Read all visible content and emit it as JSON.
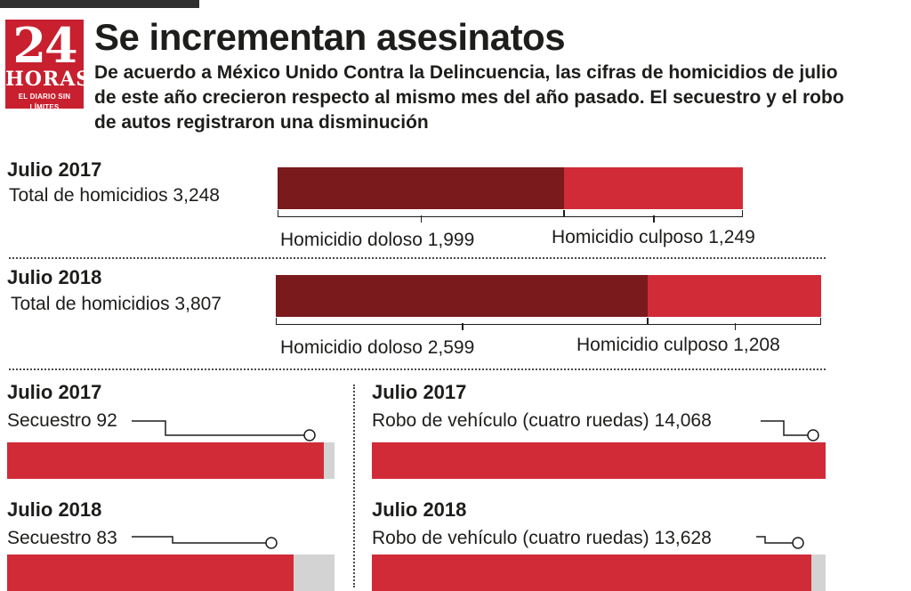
{
  "header": {
    "logo_number": "24",
    "logo_name": "HORAS",
    "logo_tagline": "EL DIARIO SIN LÍMITES",
    "title": "Se incrementan asesinatos",
    "subtitle": "De acuerdo a México Unido Contra la Delincuencia, las cifras de homicidios de julio de este año crecieron respecto al mismo mes del año pasado. El secuestro y el robo de autos registraron una disminución"
  },
  "colors": {
    "doloso": "#7a1a1c",
    "culposo": "#d12b38",
    "bar": "#d12b38",
    "remainder": "#d3d3d3"
  },
  "homicides": [
    {
      "year_label": "Julio 2017",
      "total_label": "Total de homicidios 3,248",
      "doloso_label": "Homicidio doloso 1,999",
      "culposo_label": "Homicidio culposo 1,249"
    },
    {
      "year_label": "Julio 2018",
      "total_label": "Total de homicidios 3,807",
      "doloso_label": "Homicidio doloso 2,599",
      "culposo_label": "Homicidio culposo 1,208"
    }
  ],
  "kidnapping": [
    {
      "year_label": "Julio 2017",
      "label": "Secuestro 92"
    },
    {
      "year_label": "Julio 2018",
      "label": "Secuestro 83"
    }
  ],
  "vehicle_theft": [
    {
      "year_label": "Julio 2017",
      "label": "Robo de vehículo (cuatro ruedas) 14,068"
    },
    {
      "year_label": "Julio 2018",
      "label": "Robo de vehículo (cuatro ruedas) 13,628"
    }
  ],
  "chart_data": [
    {
      "type": "bar",
      "orientation": "horizontal",
      "stacked": true,
      "title": "Homicidios",
      "categories": [
        "Julio 2017",
        "Julio 2018"
      ],
      "series": [
        {
          "name": "Homicidio doloso",
          "values": [
            1999,
            2599
          ]
        },
        {
          "name": "Homicidio culposo",
          "values": [
            1249,
            1208
          ]
        }
      ],
      "totals": [
        3248,
        3807
      ],
      "xlim": [
        0,
        3807
      ]
    },
    {
      "type": "bar",
      "orientation": "horizontal",
      "title": "Secuestro",
      "categories": [
        "Julio 2017",
        "Julio 2018"
      ],
      "values": [
        92,
        83
      ],
      "xlim": [
        0,
        95
      ]
    },
    {
      "type": "bar",
      "orientation": "horizontal",
      "title": "Robo de vehículo (cuatro ruedas)",
      "categories": [
        "Julio 2017",
        "Julio 2018"
      ],
      "values": [
        14068,
        13628
      ],
      "xlim": [
        0,
        14068
      ]
    }
  ]
}
